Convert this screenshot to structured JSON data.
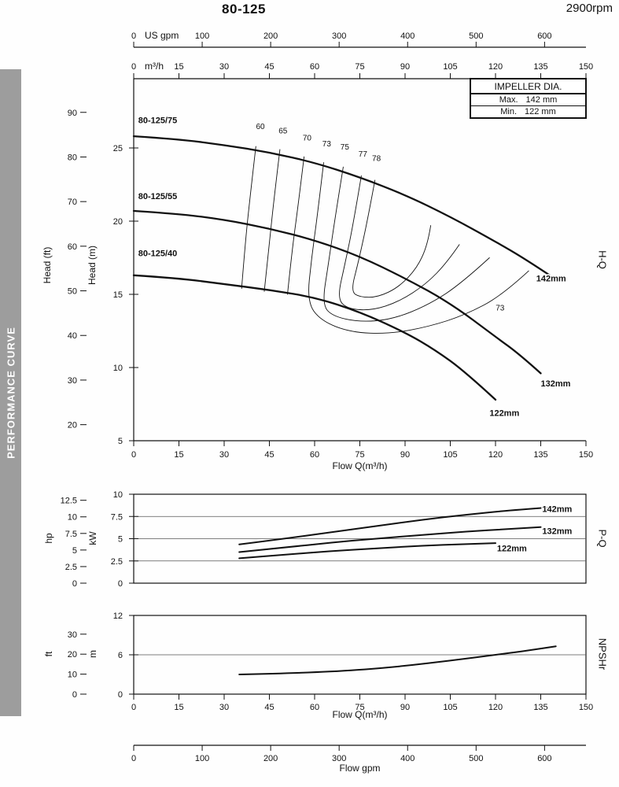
{
  "page": {
    "title": "80-125",
    "rpm": "2900rpm",
    "sidebar_label": "PERFORMANCE CURVE"
  },
  "impeller_box": {
    "header": "IMPELLER DIA.",
    "rows": [
      {
        "label": "Max.",
        "value": "142 mm"
      },
      {
        "label": "Min.",
        "value": "122 mm"
      }
    ]
  },
  "chart_data": [
    {
      "type": "line",
      "name": "H-Q",
      "side_label": "H-Q",
      "x": {
        "label": "Flow Q(m³/h)",
        "unit": "m³/h",
        "ticks": [
          0,
          15,
          30,
          45,
          60,
          75,
          90,
          105,
          120,
          135,
          150
        ],
        "range": [
          0,
          150
        ]
      },
      "x_top": {
        "unit": "US gpm",
        "ticks": [
          0,
          100,
          200,
          300,
          400,
          500,
          600
        ]
      },
      "y_inner": {
        "label": "Head (m)",
        "ticks": [
          5,
          10,
          15,
          20,
          25
        ],
        "range": [
          5,
          29.7
        ]
      },
      "y_outer": {
        "label": "Head (ft)",
        "ticks": [
          20,
          30,
          40,
          50,
          60,
          70,
          80,
          90
        ]
      },
      "series": [
        {
          "name": "80-125/75",
          "impeller": "142mm",
          "points": [
            [
              0,
              25.8
            ],
            [
              15,
              25.6
            ],
            [
              30,
              25.2
            ],
            [
              45,
              24.7
            ],
            [
              60,
              24.0
            ],
            [
              75,
              23.0
            ],
            [
              90,
              21.8
            ],
            [
              105,
              20.3
            ],
            [
              120,
              18.6
            ],
            [
              130,
              17.4
            ],
            [
              138,
              16.3
            ]
          ],
          "name_label": {
            "x": 1.5,
            "y": 26.7
          },
          "end_label": {
            "x": 133.5,
            "y": 15.9
          }
        },
        {
          "name": "80-125/55",
          "impeller": "132mm",
          "points": [
            [
              0,
              20.7
            ],
            [
              15,
              20.5
            ],
            [
              30,
              20.1
            ],
            [
              45,
              19.5
            ],
            [
              60,
              18.7
            ],
            [
              75,
              17.6
            ],
            [
              90,
              16.1
            ],
            [
              105,
              14.4
            ],
            [
              120,
              12.1
            ],
            [
              128,
              10.9
            ],
            [
              135,
              9.6
            ]
          ],
          "name_label": {
            "x": 1.5,
            "y": 21.5
          },
          "end_label": {
            "x": 135,
            "y": 8.7
          }
        },
        {
          "name": "80-125/40",
          "impeller": "122mm",
          "points": [
            [
              0,
              16.3
            ],
            [
              15,
              16.1
            ],
            [
              30,
              15.7
            ],
            [
              45,
              15.3
            ],
            [
              60,
              14.8
            ],
            [
              75,
              13.8
            ],
            [
              90,
              12.4
            ],
            [
              100,
              11.2
            ],
            [
              110,
              9.7
            ],
            [
              120,
              7.8
            ]
          ],
          "name_label": {
            "x": 1.5,
            "y": 17.6
          },
          "end_label": {
            "x": 118,
            "y": 6.7
          }
        }
      ],
      "efficiency_contours": [
        {
          "label": "60",
          "label_pos": {
            "x": 42,
            "y": 26.3
          },
          "points": [
            [
              40.5,
              25.1
            ],
            [
              38.5,
              21.5
            ],
            [
              37,
              18.5
            ],
            [
              35.8,
              15.4
            ]
          ]
        },
        {
          "label": "65",
          "label_pos": {
            "x": 49.5,
            "y": 26.0
          },
          "points": [
            [
              48.5,
              24.9
            ],
            [
              46.5,
              21.5
            ],
            [
              45,
              18.5
            ],
            [
              43.3,
              15.2
            ]
          ]
        },
        {
          "label": "70",
          "label_pos": {
            "x": 57.5,
            "y": 25.5
          },
          "points": [
            [
              56.5,
              24.4
            ],
            [
              54.5,
              21.0
            ],
            [
              52.5,
              18.0
            ],
            [
              51,
              15.0
            ]
          ]
        },
        {
          "label": "73",
          "label_pos": {
            "x": 64,
            "y": 25.1
          },
          "points": [
            [
              63,
              24.0
            ],
            [
              61,
              20.5
            ],
            [
              59,
              17.5
            ],
            [
              57.5,
              14.5
            ],
            [
              62,
              13.2
            ],
            [
              72,
              12.4
            ],
            [
              85,
              12.3
            ],
            [
              98,
              12.8
            ],
            [
              110,
              13.6
            ],
            [
              122,
              14.9
            ],
            [
              131,
              16.6
            ]
          ]
        },
        {
          "label": "75",
          "label_pos": {
            "x": 70,
            "y": 24.9
          },
          "points": [
            [
              69.5,
              23.7
            ],
            [
              67,
              20.5
            ],
            [
              64.5,
              17.0
            ],
            [
              62.5,
              14.3
            ],
            [
              66,
              13.5
            ],
            [
              75,
              13.1
            ],
            [
              86,
              13.3
            ],
            [
              98,
              14.3
            ],
            [
              109,
              15.8
            ],
            [
              118,
              17.5
            ]
          ]
        },
        {
          "label": "77",
          "label_pos": {
            "x": 76,
            "y": 24.4
          },
          "points": [
            [
              75.5,
              23.1
            ],
            [
              73,
              20.0
            ],
            [
              70,
              17.0
            ],
            [
              67.5,
              14.7
            ],
            [
              71,
              14.0
            ],
            [
              79,
              13.9
            ],
            [
              88,
              14.5
            ],
            [
              97,
              15.7
            ],
            [
              104,
              17.2
            ],
            [
              108,
              18.4
            ]
          ]
        },
        {
          "label": "78",
          "label_pos": {
            "x": 80.5,
            "y": 24.1
          },
          "points": [
            [
              80,
              22.8
            ],
            [
              77.5,
              20.0
            ],
            [
              74.5,
              17.2
            ],
            [
              72,
              15.2
            ],
            [
              75,
              14.8
            ],
            [
              81,
              14.8
            ],
            [
              88,
              15.5
            ],
            [
              94,
              16.8
            ],
            [
              97.5,
              18.4
            ],
            [
              98.5,
              19.7
            ]
          ]
        }
      ],
      "annotations": [
        {
          "text": "73",
          "x": 121.5,
          "y": 13.9
        }
      ]
    },
    {
      "type": "line",
      "name": "P-Q",
      "side_label": "P-Q",
      "y_inner": {
        "label": "kW",
        "ticks": [
          0,
          2.5,
          5,
          7.5,
          10
        ],
        "range": [
          0,
          10
        ]
      },
      "y_outer": {
        "label": "hp",
        "ticks": [
          0,
          2.5,
          5,
          7.5,
          10,
          12.5
        ]
      },
      "gridlines": [
        2.5,
        5,
        7.5
      ],
      "series": [
        {
          "name": "142mm",
          "points": [
            [
              35,
              4.35
            ],
            [
              50,
              5.0
            ],
            [
              65,
              5.7
            ],
            [
              80,
              6.4
            ],
            [
              95,
              7.1
            ],
            [
              110,
              7.7
            ],
            [
              125,
              8.2
            ],
            [
              137,
              8.5
            ]
          ],
          "end_label": {
            "x": 135.5,
            "y": 8.0
          }
        },
        {
          "name": "132mm",
          "points": [
            [
              35,
              3.5
            ],
            [
              50,
              4.0
            ],
            [
              65,
              4.55
            ],
            [
              80,
              5.0
            ],
            [
              95,
              5.4
            ],
            [
              110,
              5.8
            ],
            [
              125,
              6.1
            ],
            [
              135,
              6.3
            ]
          ],
          "end_label": {
            "x": 135.5,
            "y": 5.55
          }
        },
        {
          "name": "122mm",
          "points": [
            [
              35,
              2.8
            ],
            [
              50,
              3.2
            ],
            [
              65,
              3.6
            ],
            [
              80,
              3.9
            ],
            [
              95,
              4.2
            ],
            [
              110,
              4.4
            ],
            [
              120,
              4.5
            ]
          ],
          "end_label": {
            "x": 120.5,
            "y": 3.6
          }
        }
      ]
    },
    {
      "type": "line",
      "name": "NPSHr",
      "side_label": "NPSHr",
      "x": {
        "label": "Flow Q(m³/h)",
        "ticks": [
          0,
          15,
          30,
          45,
          60,
          75,
          90,
          105,
          120,
          135,
          150
        ],
        "range": [
          0,
          150
        ]
      },
      "x_bottom_gpm": {
        "label": "Flow gpm",
        "ticks": [
          0,
          100,
          200,
          300,
          400,
          500,
          600
        ]
      },
      "y_inner": {
        "label": "m",
        "ticks": [
          0,
          6,
          12
        ],
        "range": [
          0,
          12
        ]
      },
      "y_outer": {
        "label": "ft",
        "ticks": [
          0,
          10,
          20,
          30
        ]
      },
      "gridlines": [
        6
      ],
      "series": [
        {
          "name": "NPSHr",
          "points": [
            [
              35,
              3.0
            ],
            [
              55,
              3.2
            ],
            [
              75,
              3.7
            ],
            [
              90,
              4.3
            ],
            [
              105,
              5.1
            ],
            [
              120,
              6.0
            ],
            [
              130,
              6.6
            ],
            [
              140,
              7.3
            ]
          ]
        }
      ]
    }
  ]
}
